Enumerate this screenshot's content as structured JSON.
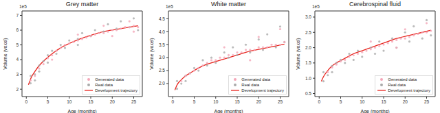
{
  "chart_data": [
    {
      "type": "scatter",
      "title": "Grey matter",
      "x_label": "Age (months)",
      "y_label": "Volume (voxel)",
      "annotations": [
        "1e5"
      ],
      "xlim": [
        -1,
        27
      ],
      "xticks": [
        0,
        5,
        10,
        15,
        20,
        25
      ],
      "ylim": [
        1.5,
        7.3
      ],
      "yticks": [
        2,
        3,
        4,
        5,
        6,
        7
      ],
      "legend": "lower right",
      "series": [
        {
          "name": "Generated data",
          "type": "scatter",
          "color": "#f4a6b8",
          "marker": "o",
          "x": [
            1,
            2,
            3,
            4,
            5,
            6,
            7,
            8,
            9,
            10,
            11,
            12,
            13,
            14,
            15,
            16,
            17,
            18,
            19,
            20,
            21,
            22,
            23,
            24,
            25,
            26,
            12,
            18,
            24,
            6,
            20,
            25
          ],
          "values": [
            2.6,
            2.9,
            3.4,
            3.7,
            4.1,
            4.3,
            4.6,
            4.8,
            5.0,
            5.1,
            5.2,
            5.3,
            5.4,
            5.5,
            5.6,
            5.7,
            5.8,
            5.8,
            5.9,
            6.0,
            6.0,
            6.1,
            6.2,
            6.2,
            6.3,
            6.2,
            5.7,
            6.3,
            6.6,
            4.0,
            5.6,
            5.9
          ]
        },
        {
          "name": "Real data",
          "type": "scatter",
          "color": "#aaaaaa",
          "marker": "o",
          "x": [
            1,
            1,
            2,
            2,
            3,
            3,
            4,
            5,
            5,
            6,
            7,
            8,
            9,
            10,
            12,
            12,
            13,
            15,
            16,
            18,
            19,
            21,
            22,
            24,
            25,
            26
          ],
          "values": [
            2.4,
            2.9,
            3.0,
            2.6,
            3.6,
            3.2,
            3.9,
            4.3,
            3.8,
            4.6,
            4.4,
            5.0,
            4.8,
            5.3,
            5.4,
            5.0,
            5.8,
            5.6,
            6.0,
            5.9,
            6.4,
            6.1,
            6.6,
            6.2,
            6.8,
            6.0
          ]
        },
        {
          "name": "Development trajectory",
          "type": "line",
          "color": "#e8231c",
          "x": [
            0.5,
            1,
            2,
            3,
            4,
            6,
            8,
            10,
            12,
            15,
            18,
            21,
            24,
            26
          ],
          "values": [
            2.3,
            2.7,
            3.2,
            3.6,
            3.9,
            4.4,
            4.8,
            5.1,
            5.35,
            5.65,
            5.9,
            6.05,
            6.2,
            6.3
          ]
        }
      ]
    },
    {
      "type": "scatter",
      "title": "White matter",
      "x_label": "Age (months)",
      "y_label": "Volume (voxel)",
      "annotations": [
        "1e5"
      ],
      "xlim": [
        -1,
        27
      ],
      "xticks": [
        0,
        5,
        10,
        15,
        20,
        25
      ],
      "ylim": [
        1.5,
        4.8
      ],
      "yticks": [
        {
          "value": 2,
          "label": "2.0"
        },
        2.5,
        {
          "value": 3,
          "label": "3.0"
        },
        3.5,
        {
          "value": 4,
          "label": "4.0"
        },
        4.5
      ],
      "legend": "lower right",
      "series": [
        {
          "name": "Generated data",
          "type": "scatter",
          "color": "#f4a6b8",
          "marker": "o",
          "x": [
            2,
            3,
            4,
            5,
            6,
            7,
            8,
            9,
            10,
            11,
            12,
            13,
            14,
            15,
            16,
            17,
            18,
            19,
            20,
            21,
            22,
            23,
            24,
            25,
            26,
            12,
            20,
            25,
            18
          ],
          "values": [
            2.1,
            2.3,
            2.4,
            2.5,
            2.6,
            2.7,
            2.8,
            2.9,
            2.9,
            3.0,
            3.0,
            3.1,
            3.1,
            3.2,
            3.2,
            3.3,
            3.3,
            3.3,
            3.4,
            3.4,
            3.4,
            3.5,
            3.5,
            3.5,
            3.6,
            3.4,
            3.8,
            4.1,
            2.9
          ]
        },
        {
          "name": "Real data",
          "type": "scatter",
          "color": "#aaaaaa",
          "marker": "o",
          "x": [
            1,
            1,
            2,
            3,
            3,
            4,
            5,
            6,
            7,
            8,
            9,
            10,
            12,
            13,
            14,
            15,
            17,
            18,
            20,
            21,
            22,
            24,
            25,
            26
          ],
          "values": [
            1.8,
            2.1,
            2.0,
            2.3,
            2.1,
            2.4,
            2.6,
            2.5,
            2.9,
            2.7,
            3.0,
            2.8,
            3.2,
            3.0,
            3.4,
            3.1,
            3.5,
            3.2,
            3.7,
            3.3,
            3.9,
            3.4,
            4.2,
            3.6
          ]
        },
        {
          "name": "Development trajectory",
          "type": "line",
          "color": "#e8231c",
          "x": [
            0.5,
            1,
            2,
            3,
            4,
            6,
            8,
            10,
            12,
            15,
            18,
            21,
            24,
            26
          ],
          "values": [
            1.75,
            1.95,
            2.15,
            2.3,
            2.4,
            2.6,
            2.75,
            2.85,
            2.95,
            3.1,
            3.25,
            3.35,
            3.45,
            3.52
          ]
        }
      ]
    },
    {
      "type": "scatter",
      "title": "Cerebrospinal fluid",
      "x_label": "Age (months)",
      "y_label": "Volume (voxel)",
      "annotations": [
        "1e5"
      ],
      "xlim": [
        -1,
        27
      ],
      "xticks": [
        0,
        5,
        10,
        15,
        20,
        25
      ],
      "ylim": [
        0.4,
        3.2
      ],
      "yticks": [
        0.5,
        {
          "value": 1,
          "label": "1.0"
        },
        1.5,
        {
          "value": 2,
          "label": "2.0"
        },
        2.5,
        {
          "value": 3,
          "label": "3.0"
        }
      ],
      "legend": "lower right",
      "series": [
        {
          "name": "Generated data",
          "type": "scatter",
          "color": "#f4a6b8",
          "marker": "o",
          "x": [
            2,
            3,
            4,
            5,
            6,
            7,
            8,
            9,
            10,
            11,
            12,
            13,
            14,
            15,
            16,
            17,
            18,
            19,
            20,
            21,
            22,
            23,
            24,
            25,
            26,
            12,
            20,
            25,
            18
          ],
          "values": [
            1.2,
            1.35,
            1.45,
            1.55,
            1.6,
            1.7,
            1.75,
            1.8,
            1.85,
            1.9,
            1.95,
            2.0,
            2.05,
            2.1,
            2.15,
            2.2,
            2.25,
            2.3,
            2.3,
            2.35,
            2.4,
            2.45,
            2.5,
            2.5,
            2.55,
            2.2,
            2.6,
            2.8,
            2.0
          ]
        },
        {
          "name": "Real data",
          "type": "scatter",
          "color": "#aaaaaa",
          "marker": "o",
          "x": [
            1,
            1,
            2,
            3,
            3,
            4,
            5,
            6,
            7,
            8,
            9,
            10,
            12,
            13,
            14,
            15,
            17,
            18,
            20,
            21,
            22,
            24,
            25,
            26
          ],
          "values": [
            0.9,
            1.2,
            1.1,
            1.4,
            1.2,
            1.5,
            1.6,
            1.5,
            1.8,
            1.6,
            1.9,
            1.7,
            2.0,
            1.8,
            2.2,
            1.9,
            2.3,
            2.0,
            2.5,
            2.2,
            2.7,
            2.3,
            2.9,
            2.4
          ]
        },
        {
          "name": "Development trajectory",
          "type": "line",
          "color": "#e8231c",
          "x": [
            0.5,
            1,
            2,
            3,
            4,
            6,
            8,
            10,
            12,
            15,
            18,
            21,
            24,
            26
          ],
          "values": [
            0.9,
            1.05,
            1.25,
            1.4,
            1.5,
            1.65,
            1.8,
            1.9,
            2.0,
            2.15,
            2.3,
            2.4,
            2.5,
            2.57
          ]
        }
      ]
    }
  ]
}
